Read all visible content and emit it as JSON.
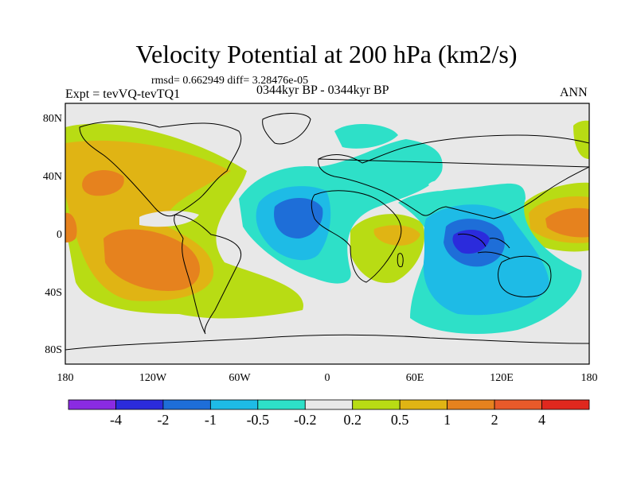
{
  "title": "Velocity Potential at 200 hPa (km2/s)",
  "stats": "rmsd= 0.662949 diff= 3.28476e-05",
  "experiment": "Expt = tevVQ-tevTQ1",
  "period": "0344kyr BP - 0344kyr BP",
  "season": "ANN",
  "map": {
    "projection": "cylindrical-equidistant",
    "lon_range": [
      -180,
      180
    ],
    "lat_range": [
      -90,
      90
    ],
    "y_ticks": [
      "80N",
      "40N",
      "0",
      "40S",
      "80S"
    ],
    "x_ticks": [
      "180",
      "120W",
      "60W",
      "0",
      "60E",
      "120E",
      "180"
    ]
  },
  "colorbar": {
    "labels": [
      "-4",
      "-2",
      "-1",
      "-0.5",
      "-0.2",
      "0.2",
      "0.5",
      "1",
      "2",
      "4"
    ],
    "colors": [
      "#8a2be2",
      "#2b2bdc",
      "#1e6ed8",
      "#1ebbe6",
      "#2ee0c8",
      "#e8e8e8",
      "#b8dc14",
      "#e0b414",
      "#e6821e",
      "#e85a2a",
      "#e0281e"
    ]
  }
}
